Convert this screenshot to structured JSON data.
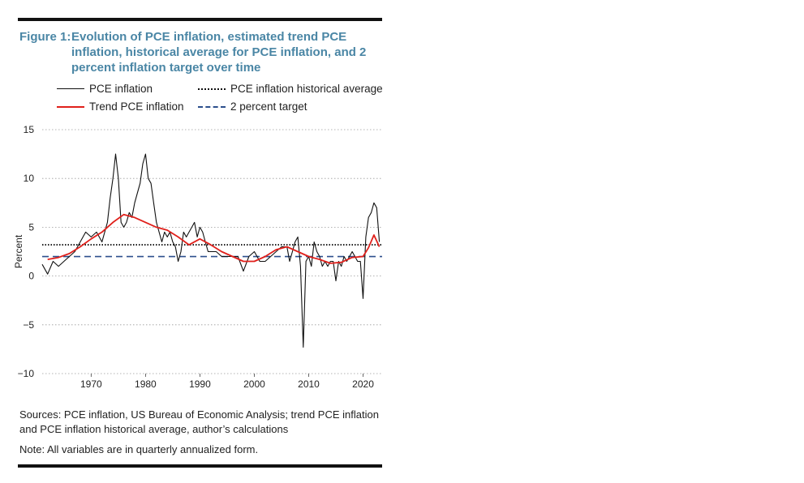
{
  "figure": {
    "label": "Figure 1:",
    "title": "Evolution of PCE inflation, estimated trend PCE inflation, historical average for PCE inflation, and 2 percent inflation target over time"
  },
  "legend": {
    "pce": "PCE inflation",
    "hist_avg": "PCE inflation historical average",
    "trend": "Trend PCE inflation",
    "target": "2 percent target"
  },
  "colors": {
    "pce": "#111111",
    "trend": "#e0201b",
    "target": "#2c4f8c",
    "title": "#4a86a5"
  },
  "notes": {
    "sources": "Sources: PCE inflation, US Bureau of Economic Analysis; trend PCE inflation and PCE inflation historical average, author’s calculations",
    "note": "Note: All variables are in quarterly annualized form."
  },
  "chart_data": {
    "type": "line",
    "ylabel": "Percent",
    "ylim": [
      -10,
      15
    ],
    "yticks": [
      -10,
      -5,
      0,
      5,
      10,
      15
    ],
    "ytick_labels": [
      "−10",
      "−5",
      "0",
      "5",
      "10",
      "15"
    ],
    "xlim": [
      1961,
      2023.5
    ],
    "xticks": [
      1970,
      1980,
      1990,
      2000,
      2010,
      2020
    ],
    "grid": "horizontal dotted",
    "legend_position": "top",
    "hist_avg_value": 3.2,
    "target_value": 2.0,
    "series": [
      {
        "name": "PCE inflation",
        "x": [
          1961.0,
          1962.0,
          1963.0,
          1964.0,
          1965.0,
          1966.0,
          1967.0,
          1968.0,
          1969.0,
          1970.0,
          1971.0,
          1972.0,
          1973.0,
          1973.5,
          1974.0,
          1974.5,
          1975.0,
          1975.5,
          1976.0,
          1976.5,
          1977.0,
          1977.5,
          1978.0,
          1978.5,
          1979.0,
          1979.5,
          1980.0,
          1980.5,
          1981.0,
          1981.5,
          1982.0,
          1982.5,
          1983.0,
          1983.5,
          1984.0,
          1984.5,
          1985.0,
          1985.5,
          1986.0,
          1986.5,
          1987.0,
          1987.5,
          1988.0,
          1988.5,
          1989.0,
          1989.5,
          1990.0,
          1990.5,
          1991.0,
          1991.5,
          1992.0,
          1993.0,
          1994.0,
          1995.0,
          1996.0,
          1997.0,
          1998.0,
          1999.0,
          2000.0,
          2001.0,
          2002.0,
          2003.0,
          2004.0,
          2005.0,
          2006.0,
          2006.5,
          2007.0,
          2007.5,
          2008.0,
          2008.5,
          2009.0,
          2009.5,
          2010.0,
          2010.5,
          2011.0,
          2011.5,
          2012.0,
          2012.5,
          2013.0,
          2013.5,
          2014.0,
          2014.5,
          2015.0,
          2015.5,
          2016.0,
          2016.5,
          2017.0,
          2017.5,
          2018.0,
          2018.5,
          2019.0,
          2019.5,
          2020.0,
          2020.5,
          2021.0,
          2021.5,
          2022.0,
          2022.5,
          2023.0
        ],
        "y": [
          1.2,
          0.2,
          1.5,
          1.0,
          1.5,
          2.0,
          2.5,
          3.5,
          4.5,
          4.0,
          4.5,
          3.5,
          5.5,
          8.0,
          10.0,
          12.5,
          10.0,
          5.5,
          5.0,
          5.5,
          6.5,
          6.0,
          7.5,
          8.5,
          9.5,
          11.5,
          12.5,
          10.0,
          9.5,
          7.5,
          5.5,
          4.5,
          3.5,
          4.5,
          4.0,
          4.5,
          3.5,
          3.0,
          1.5,
          2.5,
          4.5,
          4.0,
          4.5,
          5.0,
          5.5,
          4.0,
          5.0,
          4.5,
          3.5,
          2.5,
          2.5,
          2.5,
          2.0,
          2.0,
          2.0,
          2.0,
          0.5,
          2.0,
          2.5,
          1.5,
          1.5,
          2.0,
          2.5,
          3.0,
          3.0,
          1.5,
          2.5,
          3.5,
          4.0,
          1.0,
          -7.3,
          1.5,
          2.0,
          1.0,
          3.5,
          2.5,
          2.0,
          1.0,
          1.5,
          1.0,
          1.5,
          1.5,
          -0.5,
          1.5,
          1.0,
          2.0,
          1.5,
          2.0,
          2.5,
          2.0,
          1.5,
          1.5,
          -2.3,
          4.0,
          6.0,
          6.5,
          7.5,
          7.0,
          3.5
        ]
      },
      {
        "name": "Trend PCE inflation",
        "x": [
          1962,
          1964,
          1966,
          1968,
          1970,
          1972,
          1974,
          1976,
          1978,
          1980,
          1982,
          1984,
          1986,
          1988,
          1990,
          1992,
          1994,
          1996,
          1998,
          2000,
          2002,
          2004,
          2006,
          2008,
          2010,
          2012,
          2014,
          2016,
          2018,
          2020,
          2021,
          2022,
          2023
        ],
        "y": [
          1.7,
          1.9,
          2.3,
          3.0,
          3.8,
          4.5,
          5.5,
          6.3,
          6.0,
          5.5,
          5.0,
          4.7,
          4.0,
          3.2,
          3.8,
          3.2,
          2.5,
          2.0,
          1.5,
          1.5,
          2.0,
          2.7,
          3.0,
          2.5,
          2.0,
          1.7,
          1.3,
          1.4,
          1.9,
          2.0,
          2.9,
          4.2,
          3.0
        ]
      }
    ]
  }
}
